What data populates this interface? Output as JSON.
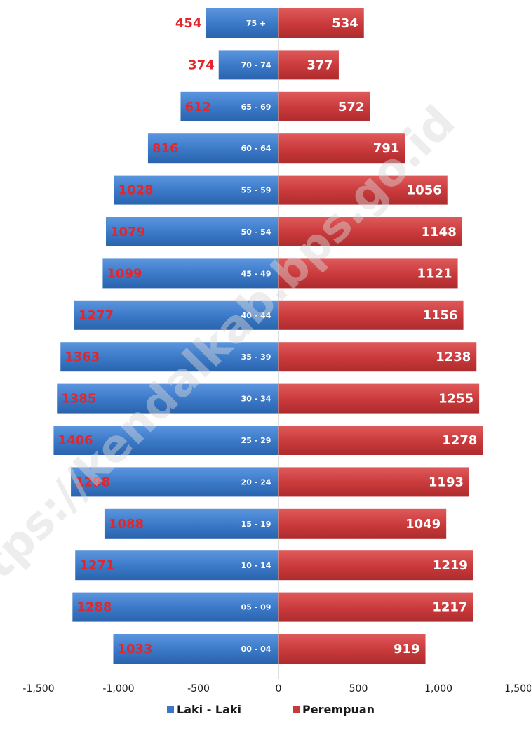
{
  "chart_data": {
    "type": "bar",
    "orientation": "horizontal",
    "categories": [
      "75 +",
      "70 - 74",
      "65 - 69",
      "60 - 64",
      "55 - 59",
      "50 - 54",
      "45 - 49",
      "40 - 44",
      "35 - 39",
      "30 - 34",
      "25 - 29",
      "20 - 24",
      "15 - 19",
      "10 - 14",
      "05 - 09",
      "00 - 04"
    ],
    "series": [
      {
        "name": "Laki - Laki",
        "color": "#3a78c6",
        "values": [
          454,
          374,
          612,
          816,
          1028,
          1079,
          1099,
          1277,
          1363,
          1385,
          1406,
          1298,
          1088,
          1271,
          1288,
          1033
        ]
      },
      {
        "name": "Perempuan",
        "color": "#c9393b",
        "values": [
          534,
          377,
          572,
          791,
          1056,
          1148,
          1121,
          1156,
          1238,
          1255,
          1278,
          1193,
          1049,
          1219,
          1217,
          919
        ]
      }
    ],
    "xlim": [
      -1500,
      1500
    ],
    "xticks": [
      -1500,
      -1000,
      -500,
      0,
      500,
      1000,
      1500
    ],
    "xtick_labels": [
      "-1,500",
      "-1,000",
      "-500",
      "0",
      "500",
      "1,000",
      "1,500"
    ],
    "legend_placement": "bottom",
    "grid": false,
    "watermark": "https://kendalkab.bps.go.id"
  }
}
